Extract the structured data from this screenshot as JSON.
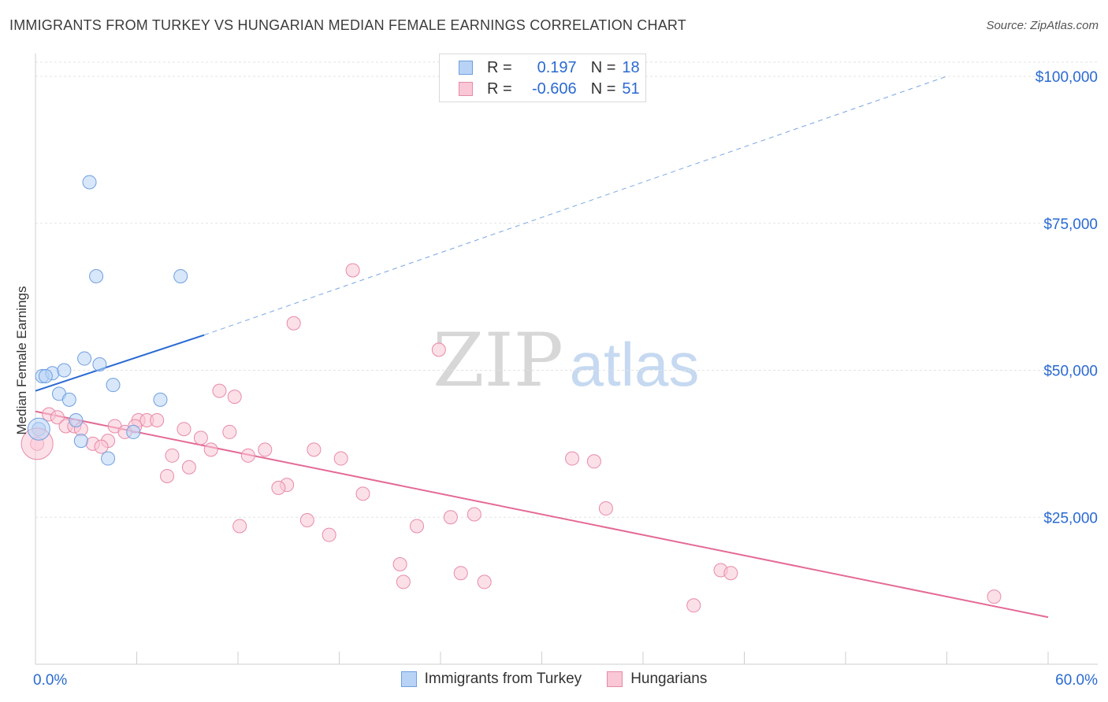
{
  "title": "IMMIGRANTS FROM TURKEY VS HUNGARIAN MEDIAN FEMALE EARNINGS CORRELATION CHART",
  "source": "Source: ZipAtlas.com",
  "watermark": {
    "zip": "ZIP",
    "atlas": "atlas"
  },
  "legend": {
    "rows": [
      {
        "r_label": "R =",
        "r_value": "0.197",
        "n_label": "N =",
        "n_value": "18",
        "fill": "#b8d3f5",
        "stroke": "#6f9fe0"
      },
      {
        "r_label": "R =",
        "r_value": "-0.606",
        "n_label": "N =",
        "n_value": "51",
        "fill": "#f9c7d6",
        "stroke": "#e88aa8"
      }
    ]
  },
  "bottom_legend": [
    "Immigrants from Turkey",
    "Hungarians"
  ],
  "chart_data": {
    "type": "scatter",
    "title": "IMMIGRANTS FROM TURKEY VS HUNGARIAN MEDIAN FEMALE EARNINGS CORRELATION CHART",
    "xlabel": "",
    "ylabel": "Median Female Earnings",
    "xlim": [
      0,
      60
    ],
    "ylim": [
      0,
      100000
    ],
    "x_tick_labels": [
      "0.0%",
      "60.0%"
    ],
    "y_tick_values": [
      25000,
      50000,
      75000,
      100000
    ],
    "y_tick_labels": [
      "$25,000",
      "$50,000",
      "$75,000",
      "$100,000"
    ],
    "grid": true,
    "colors": {
      "turkey": "#2a6ad2",
      "hungarians": "#e46a96",
      "axis_text": "#2a6ad2"
    },
    "series": [
      {
        "name": "Immigrants from Turkey",
        "color": "#6f9fe0",
        "fill": "#b8d3f5",
        "points": [
          [
            3.2,
            82000
          ],
          [
            3.6,
            66000
          ],
          [
            8.6,
            66000
          ],
          [
            0.4,
            49000
          ],
          [
            1.0,
            49500
          ],
          [
            1.7,
            50000
          ],
          [
            2.9,
            52000
          ],
          [
            3.8,
            51000
          ],
          [
            4.6,
            47500
          ],
          [
            1.4,
            46000
          ],
          [
            2.0,
            45000
          ],
          [
            7.4,
            45000
          ],
          [
            0.2,
            40000
          ],
          [
            2.4,
            41500
          ],
          [
            5.8,
            39500
          ],
          [
            2.7,
            38000
          ],
          [
            4.3,
            35000
          ],
          [
            0.6,
            49000
          ]
        ],
        "trend": {
          "x": [
            0,
            10
          ],
          "y": [
            46500,
            56000
          ],
          "dashed_to": [
            54,
            100000
          ]
        }
      },
      {
        "name": "Hungarians",
        "color": "#e88aa8",
        "fill": "#f9c7d6",
        "points": [
          [
            18.8,
            67000
          ],
          [
            15.3,
            58000
          ],
          [
            23.9,
            53500
          ],
          [
            10.9,
            46500
          ],
          [
            11.8,
            45500
          ],
          [
            0.8,
            42500
          ],
          [
            1.3,
            42000
          ],
          [
            6.1,
            41500
          ],
          [
            6.6,
            41500
          ],
          [
            7.2,
            41500
          ],
          [
            1.8,
            40500
          ],
          [
            2.3,
            40500
          ],
          [
            4.7,
            40500
          ],
          [
            5.9,
            40500
          ],
          [
            8.8,
            40000
          ],
          [
            11.5,
            39500
          ],
          [
            5.3,
            39500
          ],
          [
            2.7,
            40000
          ],
          [
            9.8,
            38500
          ],
          [
            4.3,
            38000
          ],
          [
            3.4,
            37500
          ],
          [
            3.9,
            37000
          ],
          [
            10.4,
            36500
          ],
          [
            13.6,
            36500
          ],
          [
            16.5,
            36500
          ],
          [
            8.1,
            35500
          ],
          [
            12.6,
            35500
          ],
          [
            18.1,
            35000
          ],
          [
            31.8,
            35000
          ],
          [
            33.1,
            34500
          ],
          [
            9.1,
            33500
          ],
          [
            7.8,
            32000
          ],
          [
            14.9,
            30500
          ],
          [
            14.4,
            30000
          ],
          [
            19.4,
            29000
          ],
          [
            33.8,
            26500
          ],
          [
            26.0,
            25500
          ],
          [
            24.6,
            25000
          ],
          [
            16.1,
            24500
          ],
          [
            12.1,
            23500
          ],
          [
            22.6,
            23500
          ],
          [
            17.4,
            22000
          ],
          [
            21.6,
            17000
          ],
          [
            21.8,
            14000
          ],
          [
            25.2,
            15500
          ],
          [
            26.6,
            14000
          ],
          [
            40.6,
            16000
          ],
          [
            41.2,
            15500
          ],
          [
            39.0,
            10000
          ],
          [
            56.8,
            11500
          ],
          [
            0.1,
            37500
          ]
        ],
        "trend": {
          "x": [
            0,
            60
          ],
          "y": [
            43000,
            8000
          ]
        }
      }
    ]
  }
}
